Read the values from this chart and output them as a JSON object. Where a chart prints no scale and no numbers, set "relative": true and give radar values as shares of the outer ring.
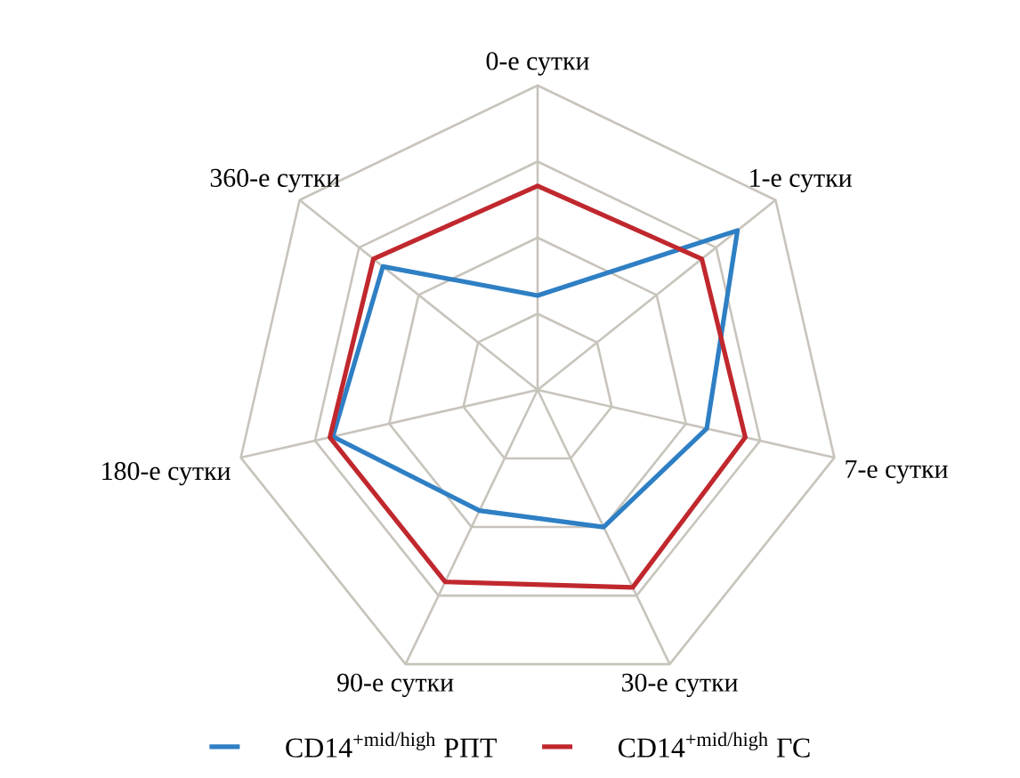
{
  "chart_data": {
    "type": "radar",
    "relative": true,
    "grid": true,
    "legend": "bottom",
    "line_style": "solid",
    "marker": "none",
    "categories": [
      "0-е сутки",
      "1-е сутки",
      "7-е сутки",
      "30-е сутки",
      "90-е сутки",
      "180-е сутки",
      "360-е сутки"
    ],
    "series": [
      {
        "name": "CD14$^{+mid/high}$ РПТ",
        "color": "#2e7fc4",
        "values": [
          0.31,
          0.84,
          0.57,
          0.5,
          0.44,
          0.69,
          0.65
        ]
      },
      {
        "name": "CD14$^{+mid/high}$ ГС",
        "color": "#c0282e",
        "values": [
          0.67,
          0.69,
          0.7,
          0.72,
          0.7,
          0.7,
          0.69
        ]
      }
    ]
  }
}
